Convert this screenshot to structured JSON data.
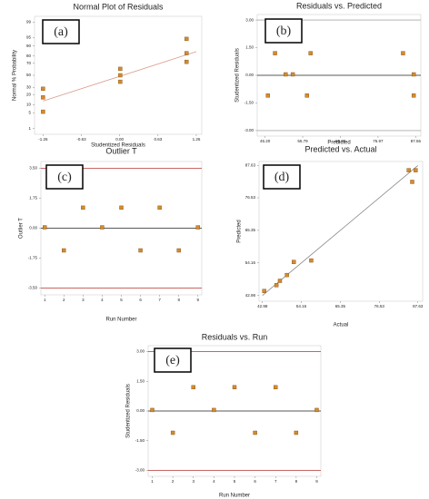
{
  "chart_data": [
    {
      "type": "scatter",
      "title": "Normal Plot of Residuals",
      "panel_label": "(a)",
      "x_label": "Studentized Residuals",
      "y_label": "Normal % Probability",
      "x": [
        -1.26,
        -1.26,
        -1.26,
        0.01,
        0.01,
        0.01,
        1.1,
        1.1,
        1.1
      ],
      "values": [
        5.6,
        16.7,
        27.8,
        38.9,
        50,
        61.1,
        72.2,
        83.3,
        94.4
      ],
      "color": "#d58b2c",
      "xlim": [
        -1.4,
        1.35
      ],
      "xticks": [
        -1.26,
        -0.63,
        {
          "value": 0,
          "label": "0.00"
        },
        0.63,
        1.26
      ],
      "yscale": "probit",
      "ylim": [
        0.5,
        99.5
      ],
      "yticks": [
        1,
        5,
        10,
        20,
        30,
        50,
        70,
        80,
        90,
        95,
        99
      ],
      "fit_line": {
        "x": [
          -1.26,
          1.26
        ],
        "y": [
          13,
          85
        ],
        "color": "#d99a8a"
      }
    },
    {
      "type": "scatter",
      "title": "Residuals vs. Predicted",
      "panel_label": "(b)",
      "x_label": "Predicted",
      "y_label": "Studentized Residuals",
      "x": [
        46,
        48,
        51,
        53,
        57,
        58,
        84,
        87,
        87
      ],
      "values": [
        -1.1,
        1.2,
        0.05,
        0.05,
        -1.1,
        1.2,
        1.2,
        0.05,
        -1.1
      ],
      "color": "#d58b2c",
      "xlim": [
        43,
        89
      ],
      "xticks": [
        {
          "value": 45.2,
          "label": "45.20"
        },
        55.79,
        66.38,
        76.97,
        87.56
      ],
      "ylim": [
        -3.3,
        3.3
      ],
      "yticks": [
        {
          "value": -3,
          "label": "-3.00"
        },
        {
          "value": -1.5,
          "label": "-1.50"
        },
        {
          "value": 0,
          "label": "0.00"
        },
        {
          "value": 1.5,
          "label": "1.50"
        },
        {
          "value": 3,
          "label": "3.00"
        }
      ],
      "limit_lines": [
        -3,
        3
      ],
      "limit_color": "#aaaaaa",
      "center_line": 0
    },
    {
      "type": "scatter",
      "title": "Outlier T",
      "panel_label": "(c)",
      "x_label": "Run Number",
      "y_label": "Outlier T",
      "x": [
        1,
        2,
        3,
        4,
        5,
        6,
        7,
        8,
        9
      ],
      "values": [
        0.05,
        -1.3,
        1.2,
        0.05,
        1.2,
        -1.3,
        1.2,
        -1.3,
        0.05
      ],
      "color": "#d58b2c",
      "xlim": [
        0.8,
        9.2
      ],
      "xticks": [
        1,
        2,
        3,
        4,
        5,
        6,
        7,
        8,
        9
      ],
      "ylim": [
        -3.9,
        3.9
      ],
      "yticks": [
        {
          "value": -3.5,
          "label": "-3.50"
        },
        -1.75,
        {
          "value": 0,
          "label": "0.00"
        },
        1.75,
        {
          "value": 3.5,
          "label": "3.50"
        }
      ],
      "limit_lines": [
        -3.5,
        3.5
      ],
      "limit_color": "#c0504d",
      "center_line": 0
    },
    {
      "type": "scatter",
      "title": "Predicted vs. Actual",
      "panel_label": "(d)",
      "x_label": "Actual",
      "y_label": "Predicted",
      "x": [
        43.5,
        47,
        48,
        50,
        52,
        57,
        85,
        86,
        87
      ],
      "values": [
        44.5,
        46.5,
        48,
        50,
        54.5,
        55,
        86,
        82,
        86
      ],
      "color": "#d58b2c",
      "xlim": [
        42,
        89
      ],
      "xticks": [
        42.98,
        54.16,
        65.35,
        76.53,
        87.63
      ],
      "ylim": [
        41,
        89
      ],
      "yticks": [
        42.98,
        54.16,
        65.35,
        76.53,
        87.63
      ],
      "fit_line": {
        "x": [
          42.98,
          87.63
        ],
        "y": [
          42.98,
          87.63
        ],
        "color": "#888888"
      }
    },
    {
      "type": "scatter",
      "title": "Residuals vs. Run",
      "panel_label": "(e)",
      "x_label": "Run Number",
      "y_label": "Studentized Residuals",
      "x": [
        1,
        2,
        3,
        4,
        5,
        6,
        7,
        8,
        9
      ],
      "values": [
        0.05,
        -1.1,
        1.2,
        0.05,
        1.2,
        -1.1,
        1.2,
        -1.1,
        0.05
      ],
      "color": "#d58b2c",
      "xlim": [
        0.8,
        9.2
      ],
      "xticks": [
        1,
        2,
        3,
        4,
        5,
        6,
        7,
        8,
        9
      ],
      "ylim": [
        -3.3,
        3.3
      ],
      "yticks": [
        {
          "value": -3,
          "label": "-3.00"
        },
        {
          "value": -1.5,
          "label": "-1.50"
        },
        {
          "value": 0,
          "label": "0.00"
        },
        {
          "value": 1.5,
          "label": "1.50"
        },
        {
          "value": 3,
          "label": "3.00"
        }
      ],
      "limit_lines": [
        -3,
        3
      ],
      "limit_color": "#c0504d",
      "center_line": 0
    }
  ]
}
